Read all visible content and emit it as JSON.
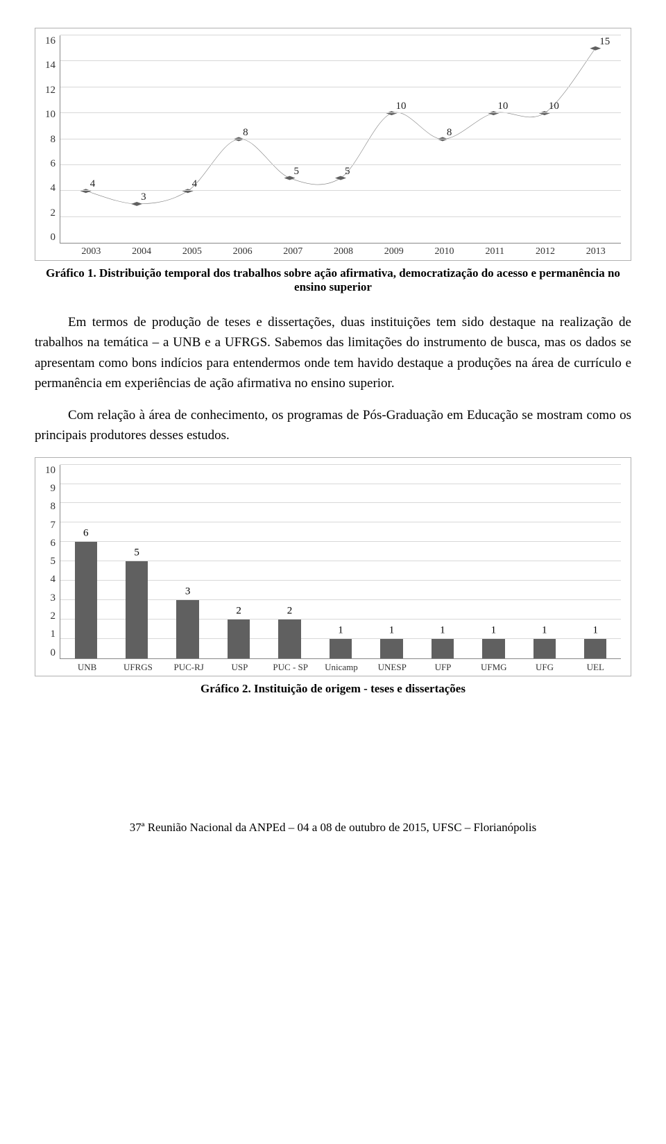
{
  "line_chart": {
    "type": "line",
    "ylim": [
      0,
      16
    ],
    "yticks": [
      0,
      2,
      4,
      6,
      8,
      10,
      12,
      14,
      16
    ],
    "categories": [
      "2003",
      "2004",
      "2005",
      "2006",
      "2007",
      "2008",
      "2009",
      "2010",
      "2011",
      "2012",
      "2013"
    ],
    "values": [
      4,
      3,
      4,
      8,
      5,
      5,
      10,
      8,
      10,
      10,
      15
    ],
    "line_color": "#808080",
    "marker_color": "#606060",
    "grid_color": "#d8d8d8",
    "axis_color": "#888888",
    "label_fontsize": 15,
    "marker_shape": "diamond",
    "marker_size": 5,
    "line_width": 2,
    "background_color": "#ffffff"
  },
  "caption1_bold": "Gráfico 1. ",
  "caption1_rest": "Distribuição temporal dos trabalhos sobre ação afirmativa, democratização do acesso e permanência no ensino superior",
  "para1": "Em termos de produção de teses e dissertações, duas instituições tem sido destaque na realização de trabalhos na temática – a UNB e a UFRGS. Sabemos das limitações do instrumento de busca, mas os dados se apresentam como bons indícios para entendermos onde tem havido destaque a produções na área de currículo e permanência em experiências de ação afirmativa no ensino superior.",
  "para2": "Com relação à área de conhecimento, os programas de Pós-Graduação em Educação se mostram como os principais produtores desses estudos.",
  "bar_chart": {
    "type": "bar",
    "ylim": [
      0,
      10
    ],
    "yticks": [
      0,
      1,
      2,
      3,
      4,
      5,
      6,
      7,
      8,
      9,
      10
    ],
    "categories": [
      "UNB",
      "UFRGS",
      "PUC-RJ",
      "USP",
      "PUC - SP",
      "Unicamp",
      "UNESP",
      "UFP",
      "UFMG",
      "UFG",
      "UEL"
    ],
    "values": [
      6,
      5,
      3,
      2,
      2,
      1,
      1,
      1,
      1,
      1,
      1
    ],
    "bar_color": "#606060",
    "grid_color": "#d8d8d8",
    "axis_color": "#888888",
    "label_fontsize": 15,
    "bar_width": 0.44,
    "background_color": "#ffffff"
  },
  "caption2_bold": "Gráfico 2. Instituição de origem - teses e dissertações",
  "footer": "37ª Reunião Nacional da ANPEd – 04 a 08 de outubro de 2015, UFSC – Florianópolis"
}
